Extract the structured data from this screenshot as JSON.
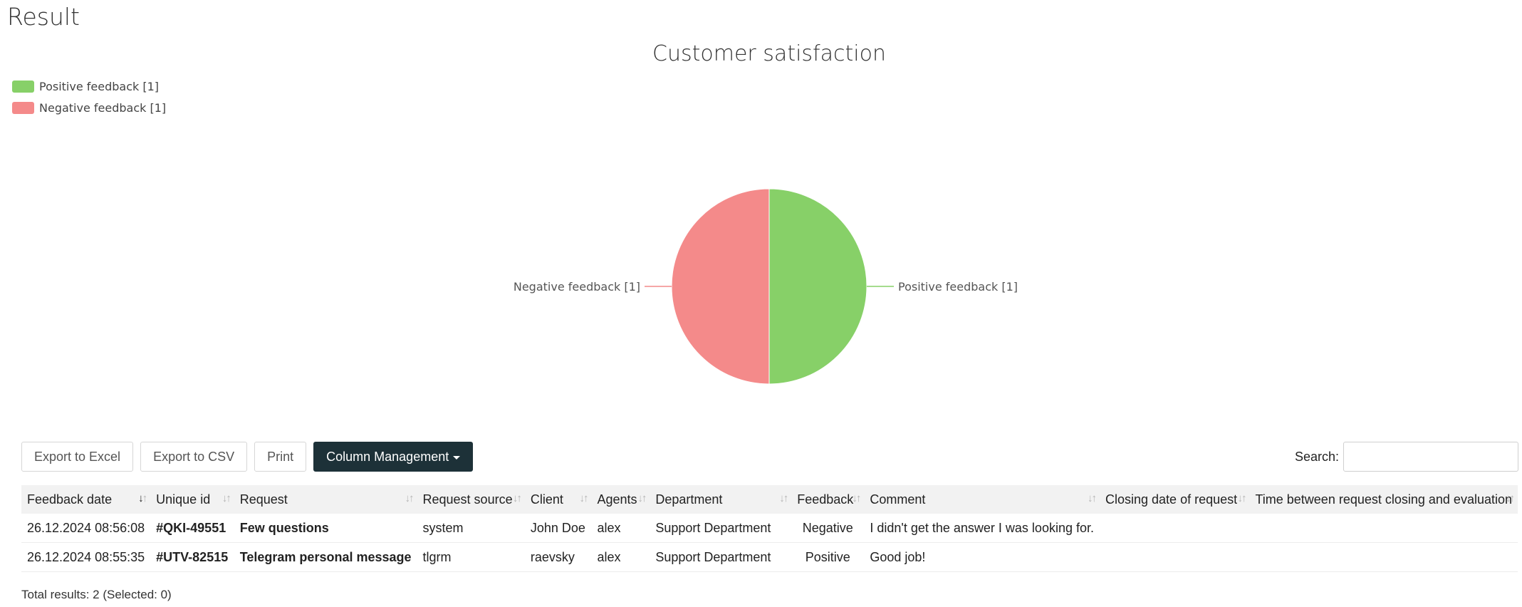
{
  "page_title": "Result",
  "chart_data": {
    "type": "pie",
    "title": "Customer satisfaction",
    "slices": [
      {
        "label": "Positive feedback [1]",
        "value": 1,
        "color": "#87d068"
      },
      {
        "label": "Negative feedback [1]",
        "value": 1,
        "color": "#f48a8a"
      }
    ],
    "legend_position": "top-left"
  },
  "toolbar": {
    "export_excel": "Export to Excel",
    "export_csv": "Export to CSV",
    "print": "Print",
    "column_management": "Column Management"
  },
  "search": {
    "label": "Search:",
    "value": ""
  },
  "table": {
    "columns": [
      "Feedback date",
      "Unique id",
      "Request",
      "Request source",
      "Client",
      "Agents",
      "Department",
      "Feedback",
      "Comment",
      "Closing date of request",
      "Time between request closing and evaluation"
    ],
    "rows": [
      [
        "26.12.2024 08:56:08",
        "#QKI-49551",
        "Few questions",
        "system",
        "John Doe",
        "alex",
        "Support Department",
        "Negative",
        "I didn't get the answer I was looking for.",
        "",
        ""
      ],
      [
        "26.12.2024 08:55:35",
        "#UTV-82515",
        "Telegram personal message",
        "tlgrm",
        "raevsky",
        "alex",
        "Support Department",
        "Positive",
        "Good job!",
        "",
        ""
      ]
    ]
  },
  "footer": {
    "total": "Total results: 2 (Selected: 0)"
  }
}
